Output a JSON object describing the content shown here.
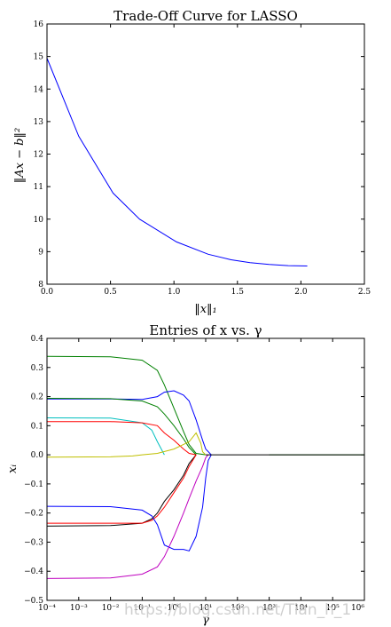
{
  "chart_data": [
    {
      "type": "line",
      "title": "Trade-Off Curve for LASSO",
      "xlabel": "‖x‖₁",
      "ylabel": "‖Ax − b‖²",
      "xlim": [
        0,
        2.5
      ],
      "ylim": [
        8,
        16
      ],
      "xticks": [
        "0.0",
        "0.5",
        "1.0",
        "1.5",
        "2.0",
        "2.5"
      ],
      "yticks": [
        "8",
        "9",
        "10",
        "11",
        "12",
        "13",
        "14",
        "15",
        "16"
      ],
      "grid": false,
      "series": [
        {
          "color": "#0000ff",
          "x": [
            0.0,
            0.25,
            0.52,
            0.73,
            1.02,
            1.27,
            1.45,
            1.6,
            1.75,
            1.9,
            2.05
          ],
          "y": [
            14.95,
            12.55,
            10.8,
            10.0,
            9.3,
            8.92,
            8.75,
            8.66,
            8.61,
            8.57,
            8.56
          ]
        }
      ]
    },
    {
      "type": "line",
      "title": "Entries of x vs. γ",
      "xlabel": "γ",
      "ylabel": "xᵢ",
      "xscale": "log",
      "xlim": [
        0.0001,
        1000000
      ],
      "ylim": [
        -0.5,
        0.4
      ],
      "xticks": [
        "10⁻⁴",
        "10⁻³",
        "10⁻²",
        "10⁻¹",
        "10⁰",
        "10¹",
        "10²",
        "10³",
        "10⁴",
        "10⁵",
        "10⁶"
      ],
      "yticks": [
        "0.4",
        "0.3",
        "0.2",
        "0.1",
        "0.0",
        "−0.1",
        "−0.2",
        "−0.3",
        "−0.4",
        "−0.5"
      ],
      "grid": false,
      "series": [
        {
          "color": "#008000",
          "x": [
            0.0001,
            0.01,
            0.1,
            0.3,
            0.5,
            1,
            2,
            3,
            5,
            10
          ],
          "y": [
            0.338,
            0.337,
            0.325,
            0.29,
            0.24,
            0.16,
            0.08,
            0.035,
            0.005,
            0.0
          ]
        },
        {
          "color": "#0000ff",
          "x": [
            0.0001,
            0.01,
            0.1,
            0.3,
            0.5,
            1,
            2,
            3,
            5,
            8,
            10,
            15
          ],
          "y": [
            0.192,
            0.192,
            0.19,
            0.2,
            0.215,
            0.22,
            0.205,
            0.185,
            0.12,
            0.05,
            0.02,
            0.0
          ]
        },
        {
          "color": "#008000",
          "x": [
            0.0001,
            0.01,
            0.1,
            0.3,
            0.5,
            1,
            2,
            3,
            5
          ],
          "y": [
            0.194,
            0.193,
            0.185,
            0.165,
            0.14,
            0.1,
            0.055,
            0.025,
            0.0
          ]
        },
        {
          "color": "#00bfbf",
          "x": [
            0.0001,
            0.01,
            0.1,
            0.2,
            0.3,
            0.5
          ],
          "y": [
            0.127,
            0.126,
            0.11,
            0.085,
            0.045,
            0.0
          ]
        },
        {
          "color": "#ff0000",
          "x": [
            0.0001,
            0.01,
            0.1,
            0.3,
            0.5,
            1,
            2,
            3,
            5
          ],
          "y": [
            0.114,
            0.114,
            0.11,
            0.1,
            0.075,
            0.05,
            0.02,
            0.005,
            0.0
          ]
        },
        {
          "color": "#bfbf00",
          "x": [
            0.0001,
            0.01,
            0.05,
            0.1,
            0.3,
            1,
            3,
            5,
            7,
            8,
            10
          ],
          "y": [
            -0.008,
            -0.007,
            -0.004,
            0.0,
            0.005,
            0.02,
            0.045,
            0.075,
            0.04,
            0.01,
            0.0
          ]
        },
        {
          "color": "#000000",
          "x": [
            0.0001,
            0.01,
            0.1,
            0.2,
            0.3,
            0.5,
            1,
            2,
            3,
            5
          ],
          "y": [
            -0.245,
            -0.243,
            -0.235,
            -0.22,
            -0.2,
            -0.16,
            -0.12,
            -0.07,
            -0.03,
            0.0
          ]
        },
        {
          "color": "#ff0000",
          "x": [
            0.0001,
            0.01,
            0.1,
            0.2,
            0.3,
            0.5,
            1,
            2,
            3,
            5
          ],
          "y": [
            -0.235,
            -0.235,
            -0.235,
            -0.225,
            -0.21,
            -0.18,
            -0.13,
            -0.08,
            -0.04,
            0.0
          ]
        },
        {
          "color": "#0000ff",
          "x": [
            0.0001,
            0.01,
            0.1,
            0.2,
            0.3,
            0.5,
            1,
            2,
            3,
            5,
            8,
            10,
            12,
            15
          ],
          "y": [
            -0.177,
            -0.178,
            -0.19,
            -0.21,
            -0.24,
            -0.31,
            -0.325,
            -0.325,
            -0.33,
            -0.28,
            -0.18,
            -0.08,
            -0.02,
            0.0
          ]
        },
        {
          "color": "#bf00bf",
          "x": [
            0.0001,
            0.01,
            0.1,
            0.3,
            0.5,
            1,
            2,
            3,
            5,
            8,
            10,
            12
          ],
          "y": [
            -0.425,
            -0.423,
            -0.41,
            -0.385,
            -0.35,
            -0.28,
            -0.2,
            -0.15,
            -0.09,
            -0.04,
            -0.01,
            0.0
          ]
        },
        {
          "color": "#008000",
          "x": [
            1000,
            1000000
          ],
          "y": [
            0.0,
            0.0
          ]
        }
      ]
    }
  ],
  "watermark": "https://blog.csdn.net/Tian_h_1"
}
